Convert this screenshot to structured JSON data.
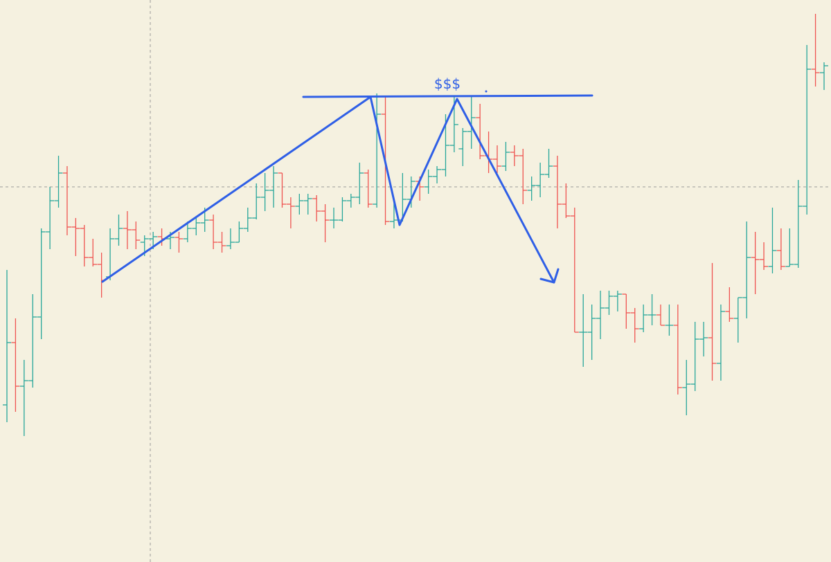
{
  "chart_data": {
    "type": "ohlc",
    "annotation": "$$$",
    "up_color": "#26a69a",
    "down_color": "#ef5350",
    "ylim": [
      0,
      812
    ],
    "open": [
      227,
      317,
      254,
      262,
      354,
      477,
      522,
      562,
      484,
      482,
      440,
      430,
      412,
      467,
      482,
      480,
      462,
      467,
      470,
      467,
      469,
      467,
      482,
      490,
      494,
      462,
      457,
      462,
      482,
      497,
      527,
      537,
      562,
      517,
      514,
      522,
      525,
      507,
      494,
      494,
      522,
      527,
      562,
      517,
      647,
      492,
      494,
      524,
      550,
      542,
      557,
      567,
      602,
      597,
      622,
      642,
      587,
      582,
      572,
      592,
      587,
      537,
      544,
      560,
      572,
      517,
      500,
      332,
      332,
      352,
      367,
      384,
      387,
      360,
      337,
      357,
      357,
      342,
      342,
      252,
      257,
      322,
      324,
      287,
      362,
      352,
      382,
      440,
      437,
      427,
      450,
      427,
      430,
      514,
      712,
      707
    ],
    "high": [
      422,
      352,
      292,
      387,
      482,
      542,
      587,
      572,
      497,
      487,
      467,
      447,
      482,
      502,
      507,
      492,
      472,
      477,
      482,
      477,
      477,
      492,
      497,
      512,
      502,
      477,
      482,
      492,
      512,
      547,
      562,
      572,
      562,
      527,
      532,
      532,
      530,
      517,
      512,
      527,
      532,
      577,
      567,
      677,
      672,
      522,
      562,
      557,
      557,
      567,
      572,
      647,
      672,
      627,
      672,
      662,
      622,
      602,
      607,
      602,
      597,
      557,
      577,
      597,
      587,
      547,
      512,
      387,
      372,
      392,
      392,
      392,
      387,
      367,
      372,
      387,
      372,
      372,
      372,
      292,
      347,
      347,
      432,
      372,
      397,
      382,
      492,
      477,
      462,
      512,
      482,
      482,
      552,
      747,
      792,
      722
    ],
    "low": [
      202,
      217,
      182,
      252,
      322,
      452,
      512,
      472,
      442,
      427,
      427,
      382,
      407,
      457,
      452,
      452,
      442,
      452,
      457,
      452,
      447,
      462,
      472,
      477,
      452,
      447,
      452,
      462,
      477,
      495,
      507,
      512,
      512,
      482,
      502,
      502,
      492,
      462,
      482,
      492,
      512,
      517,
      512,
      512,
      487,
      482,
      492,
      512,
      522,
      532,
      547,
      557,
      592,
      572,
      597,
      582,
      562,
      562,
      565,
      572,
      517,
      522,
      527,
      555,
      482,
      497,
      332,
      282,
      292,
      322,
      357,
      362,
      337,
      317,
      332,
      342,
      342,
      327,
      242,
      212,
      247,
      297,
      262,
      262,
      347,
      317,
      352,
      387,
      422,
      417,
      422,
      427,
      425,
      502,
      687,
      682
    ],
    "close": [
      317,
      254,
      262,
      354,
      477,
      522,
      562,
      484,
      482,
      440,
      430,
      407,
      467,
      482,
      480,
      465,
      467,
      470,
      467,
      469,
      467,
      482,
      490,
      494,
      462,
      457,
      462,
      482,
      497,
      527,
      537,
      562,
      517,
      514,
      522,
      525,
      507,
      494,
      494,
      522,
      527,
      562,
      517,
      647,
      492,
      494,
      524,
      550,
      542,
      557,
      567,
      602,
      632,
      622,
      642,
      587,
      582,
      572,
      592,
      587,
      537,
      544,
      560,
      572,
      517,
      500,
      332,
      332,
      352,
      367,
      384,
      387,
      360,
      337,
      357,
      357,
      342,
      342,
      252,
      257,
      322,
      324,
      287,
      362,
      352,
      382,
      440,
      437,
      427,
      450,
      427,
      430,
      514,
      712,
      707,
      717
    ]
  }
}
